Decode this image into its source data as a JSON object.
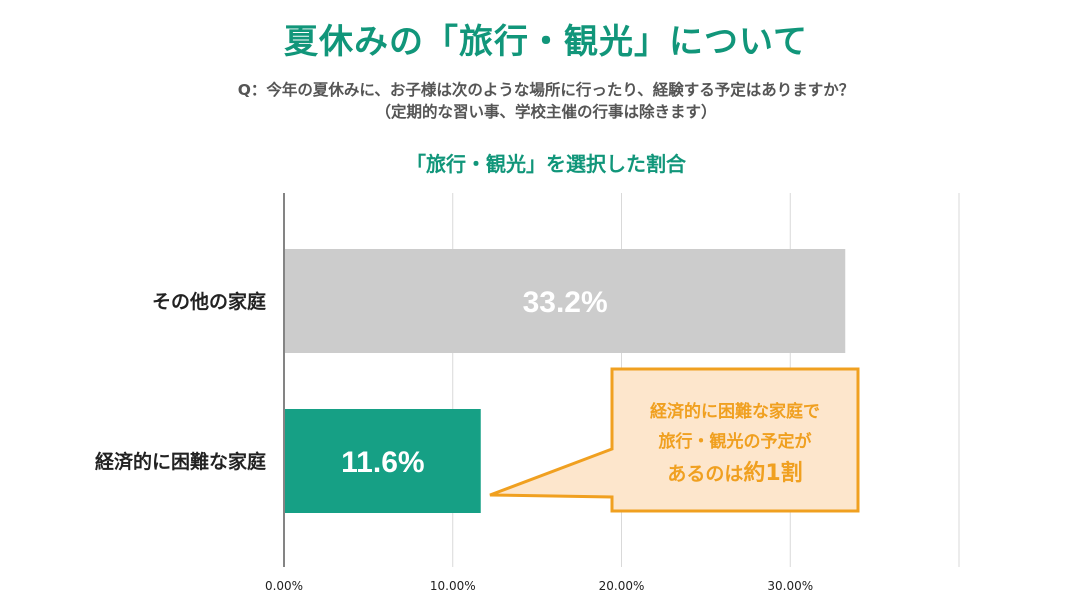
{
  "header": {
    "title": "夏休みの「旅行・観光」について",
    "question_line1": "Q：今年の夏休みに、お子様は次のような場所に行ったり、経験する予定はありますか？",
    "question_line2": "（定期的な習い事、学校主催の行事は除きます）"
  },
  "chart_data": {
    "type": "bar",
    "orientation": "horizontal",
    "title": "「旅行・観光」を選択した割合",
    "categories": [
      "その他の家庭",
      "経済的に困難な家庭"
    ],
    "values": [
      33.2,
      11.6
    ],
    "value_labels": [
      "33.2%",
      "11.6%"
    ],
    "bar_colors": [
      "#cccccc",
      "#16a085"
    ],
    "xlim": [
      0,
      40
    ],
    "x_ticks": [
      0,
      10,
      20,
      30,
      40
    ],
    "x_tick_labels": [
      "0.00%",
      "10.00%",
      "20.00%",
      "30.00%",
      ""
    ],
    "grid": true,
    "legend": "none"
  },
  "callout": {
    "line1": "経済的に困難な家庭で",
    "line2": "旅行・観光の予定が",
    "line3_prefix": "あるのは",
    "line3_emphasis": "約1割",
    "border_color": "#f0a020",
    "fill_color": "#fde6cc",
    "text_color": "#f0a020"
  },
  "colors": {
    "accent": "#11967a",
    "grid": "#d9d9d9",
    "axis": "#333333"
  }
}
